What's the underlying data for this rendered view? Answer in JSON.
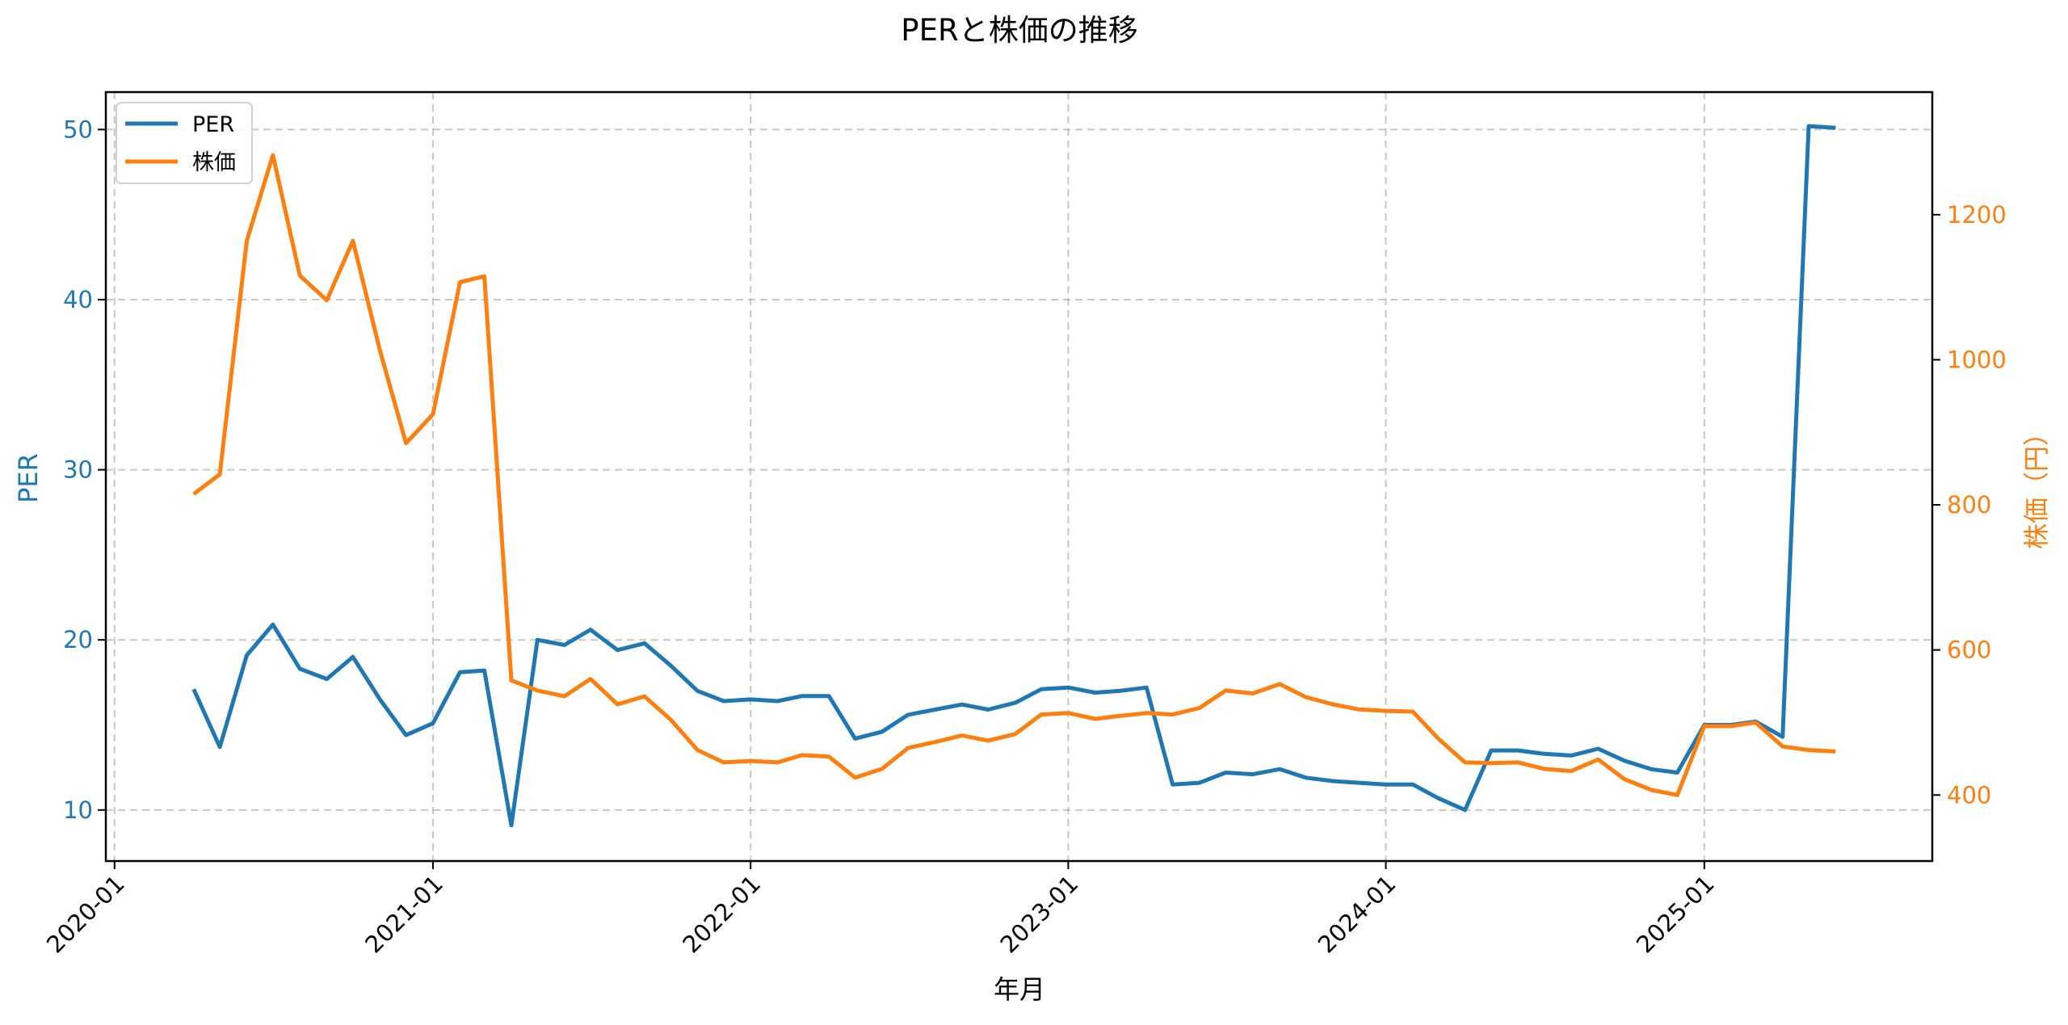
{
  "chart_data": {
    "type": "line",
    "title": "PERと株価の推移",
    "xlabel": "年月",
    "ylabel_left": "PER",
    "ylabel_right": "株価（円）",
    "ylim_left": [
      7.0,
      52.2
    ],
    "ylim_right": [
      309,
      1369
    ],
    "xlim": [
      "2019-12-22",
      "2025-09-20"
    ],
    "grid": true,
    "legend_position": "upper left",
    "x_ticks": [
      "2020-01",
      "2021-01",
      "2022-01",
      "2023-01",
      "2024-01",
      "2025-01"
    ],
    "y_ticks_left": [
      10,
      20,
      30,
      40,
      50
    ],
    "y_ticks_right": [
      400,
      600,
      800,
      1000,
      1200
    ],
    "x": [
      "2020-04",
      "2020-05",
      "2020-06",
      "2020-07",
      "2020-08",
      "2020-09",
      "2020-10",
      "2020-11",
      "2020-12",
      "2021-01",
      "2021-02",
      "2021-03",
      "2021-04",
      "2021-05",
      "2021-06",
      "2021-07",
      "2021-08",
      "2021-09",
      "2021-10",
      "2021-11",
      "2021-12",
      "2022-01",
      "2022-02",
      "2022-03",
      "2022-04",
      "2022-05",
      "2022-06",
      "2022-07",
      "2022-08",
      "2022-09",
      "2022-10",
      "2022-11",
      "2022-12",
      "2023-01",
      "2023-02",
      "2023-03",
      "2023-04",
      "2023-05",
      "2023-06",
      "2023-07",
      "2023-08",
      "2023-09",
      "2023-10",
      "2023-11",
      "2023-12",
      "2024-01",
      "2024-02",
      "2024-03",
      "2024-04",
      "2024-05",
      "2024-06",
      "2024-07",
      "2024-08",
      "2024-09",
      "2024-10",
      "2024-11",
      "2024-12",
      "2025-01",
      "2025-02",
      "2025-03",
      "2025-04",
      "2025-05",
      "2025-06"
    ],
    "series": [
      {
        "name": "PER",
        "axis": "left",
        "color": "#1f77b4",
        "values": [
          17.1,
          13.7,
          19.1,
          20.9,
          18.3,
          17.7,
          19.0,
          16.5,
          14.4,
          15.1,
          18.1,
          18.2,
          9.1,
          20.0,
          19.7,
          20.6,
          19.4,
          19.8,
          18.5,
          17.0,
          16.4,
          16.5,
          16.4,
          16.7,
          16.7,
          14.2,
          14.6,
          15.6,
          15.9,
          16.2,
          15.9,
          16.3,
          17.1,
          17.2,
          16.9,
          17.0,
          17.2,
          11.5,
          11.6,
          12.2,
          12.1,
          12.4,
          11.9,
          11.7,
          11.6,
          11.5,
          11.5,
          10.7,
          10.0,
          13.5,
          13.5,
          13.3,
          13.2,
          13.6,
          12.9,
          12.4,
          12.2,
          15.0,
          15.0,
          15.2,
          14.3,
          50.2,
          50.1
        ]
      },
      {
        "name": "株価",
        "axis": "right",
        "color": "#ff7f0e",
        "values": [
          815,
          842,
          1164,
          1282,
          1116,
          1082,
          1164,
          1013,
          885,
          925,
          1107,
          1115,
          558,
          544,
          536,
          560,
          525,
          536,
          504,
          462,
          445,
          447,
          445,
          455,
          453,
          424,
          436,
          465,
          473,
          482,
          475,
          484,
          511,
          513,
          505,
          509,
          513,
          511,
          520,
          544,
          540,
          553,
          535,
          525,
          518,
          516,
          515,
          478,
          445,
          444,
          445,
          436,
          433,
          449,
          422,
          407,
          400,
          495,
          495,
          500,
          467,
          462,
          460
        ]
      }
    ]
  },
  "legend": {
    "items": [
      {
        "label": "PER",
        "color": "#1f77b4"
      },
      {
        "label": "株価",
        "color": "#ff7f0e"
      }
    ]
  }
}
